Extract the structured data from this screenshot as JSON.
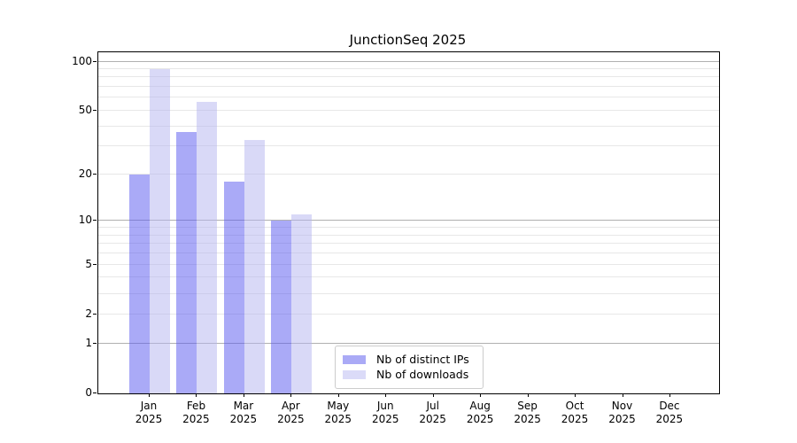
{
  "title": "JunctionSeq 2025",
  "chart_data": {
    "type": "bar",
    "title": "JunctionSeq 2025",
    "scale": "log10(1+y)",
    "months": [
      "Jan",
      "Feb",
      "Mar",
      "Apr",
      "May",
      "Jun",
      "Jul",
      "Aug",
      "Sep",
      "Oct",
      "Nov",
      "Dec"
    ],
    "year": "2025",
    "series": [
      {
        "name": "Nb of distinct IPs",
        "legend_color": "#aaaaf6",
        "fill": "rgba(85,85,240,0.5)",
        "values": [
          20,
          37,
          18,
          10,
          0,
          0,
          0,
          0,
          0,
          0,
          0,
          0
        ]
      },
      {
        "name": "Nb of downloads",
        "legend_color": "#dbdbf8",
        "fill": "rgba(180,180,240,0.5)",
        "values": [
          90,
          57,
          33,
          11,
          0,
          0,
          0,
          0,
          0,
          0,
          0,
          0
        ]
      }
    ],
    "y_ticks": [
      0,
      1,
      2,
      5,
      10,
      20,
      50,
      100
    ],
    "ylim": [
      0,
      114
    ],
    "grid_major": [
      1,
      10,
      100
    ],
    "grid_minor": [
      2,
      3,
      4,
      5,
      6,
      7,
      8,
      9,
      20,
      30,
      40,
      50,
      60,
      70,
      80,
      90
    ],
    "grid_major_color": "#b0b0b0",
    "grid_minor_color": "#e7e7e7",
    "legend_position": "lower center",
    "background_color": "#ffffff",
    "axis_color": "#000000"
  }
}
